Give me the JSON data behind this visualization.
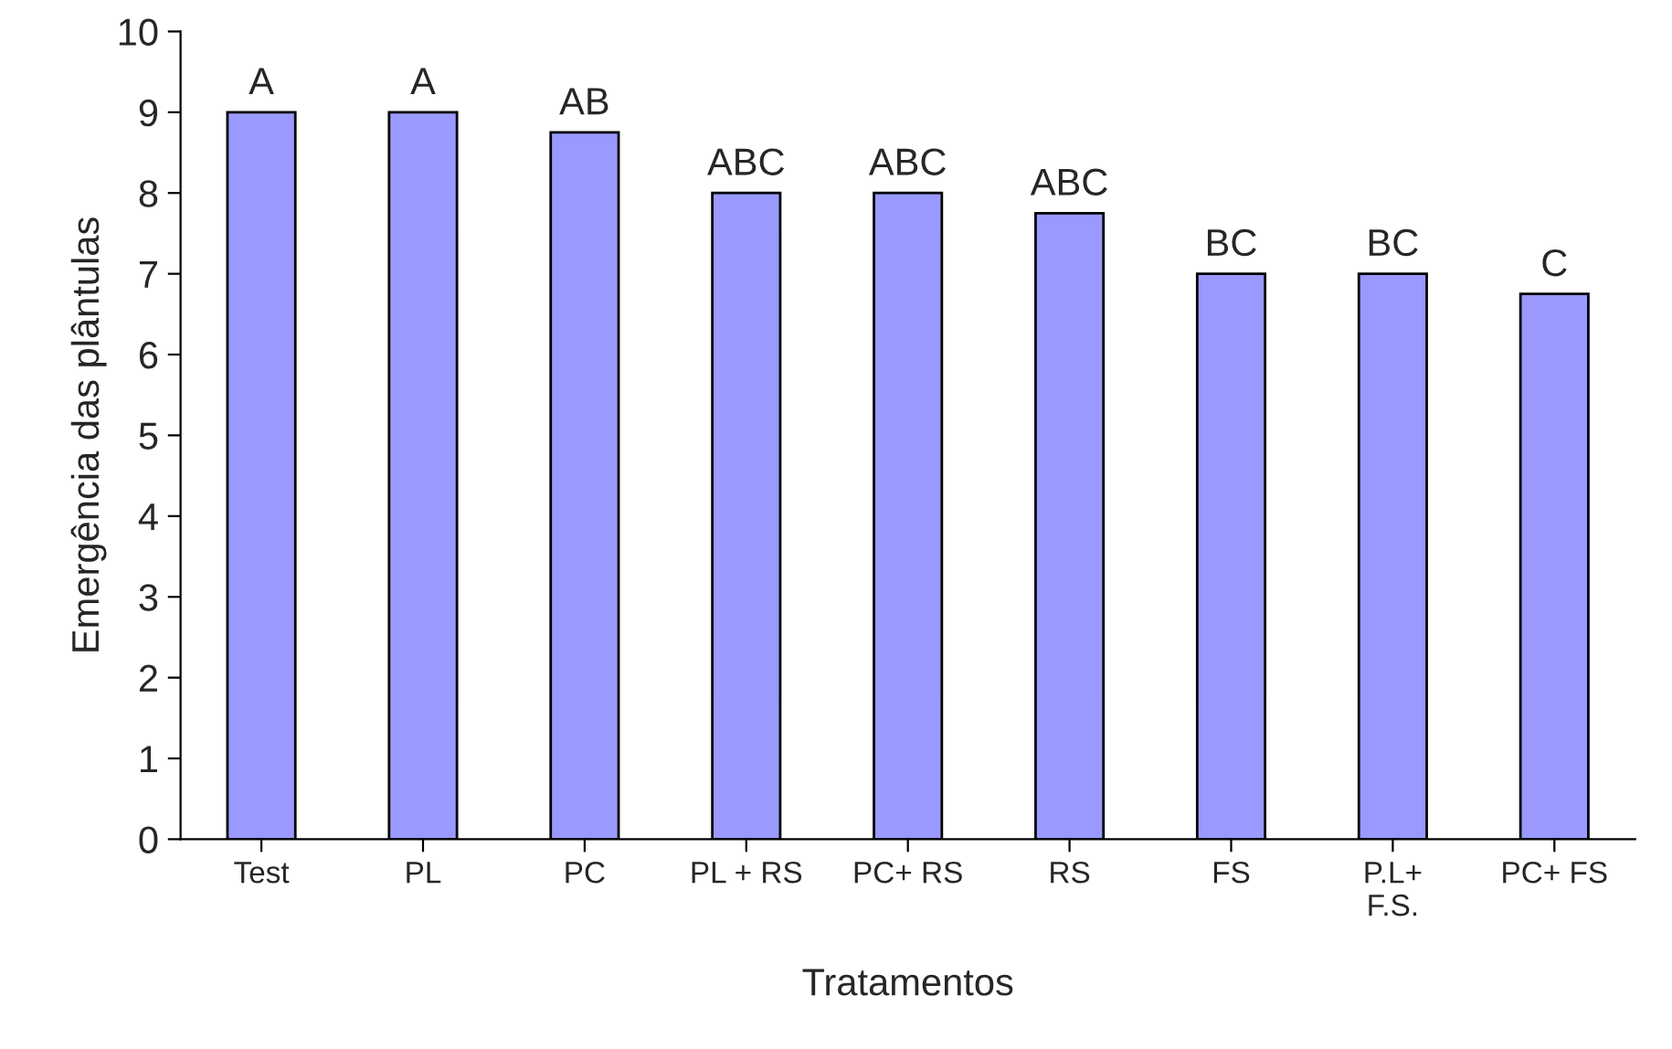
{
  "chart_data": {
    "type": "bar",
    "xlabel": "Tratamentos",
    "ylabel": "Emergência das plântulas",
    "categories": [
      "Test",
      "PL",
      "PC",
      "PL + RS",
      "PC+ RS",
      "RS",
      "FS",
      "P.L+\nF.S.",
      "PC+ FS"
    ],
    "values": [
      9,
      9,
      8.75,
      8,
      8,
      7.75,
      7,
      7,
      6.75
    ],
    "color": "#9999ff",
    "ylim": [
      0,
      10
    ],
    "yticks": [
      0,
      1,
      2,
      3,
      4,
      5,
      6,
      7,
      8,
      9,
      10
    ],
    "grid": false,
    "legend": false,
    "annotations": [
      {
        "text": "A",
        "x": "Test",
        "y": 9
      },
      {
        "text": "A",
        "x": "PL",
        "y": 9
      },
      {
        "text": "AB",
        "x": "PC",
        "y": 8.75
      },
      {
        "text": "ABC",
        "x": "PL + RS",
        "y": 8
      },
      {
        "text": "ABC",
        "x": "PC+ RS",
        "y": 8
      },
      {
        "text": "ABC",
        "x": "RS",
        "y": 7.75
      },
      {
        "text": "BC",
        "x": "FS",
        "y": 7
      },
      {
        "text": "BC",
        "x": "P.L+\nF.S.",
        "y": 7
      },
      {
        "text": "C",
        "x": "PC+ FS",
        "y": 6.75
      }
    ]
  }
}
